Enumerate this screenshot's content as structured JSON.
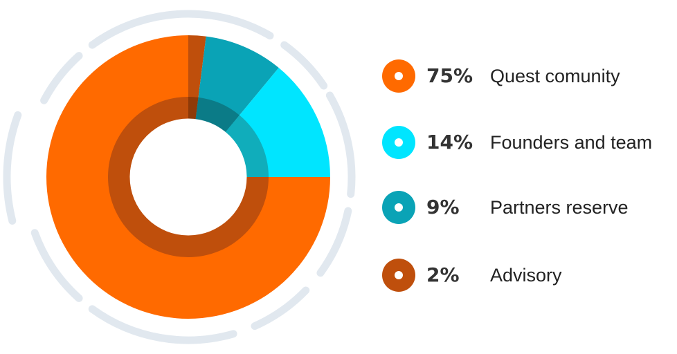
{
  "chart_data": {
    "type": "pie",
    "slices": [
      {
        "value": 75,
        "value_label": "75%",
        "label": "Quest comunity",
        "color": "#ff6a00",
        "ring_color": "#bf4f0c"
      },
      {
        "value": 14,
        "value_label": "14%",
        "label": "Founders and team",
        "color": "#00e5ff",
        "ring_color": "#10adbb"
      },
      {
        "value": 9,
        "value_label": "9%",
        "label": "Partners reserve",
        "color": "#0aa3b6",
        "ring_color": "#0b7b87"
      },
      {
        "value": 2,
        "value_label": "2%",
        "label": "Advisory",
        "color": "#bf4f0c",
        "ring_color": "#8e3a08"
      }
    ],
    "legend_position": "right",
    "decor_color": "#e1e8ef"
  }
}
